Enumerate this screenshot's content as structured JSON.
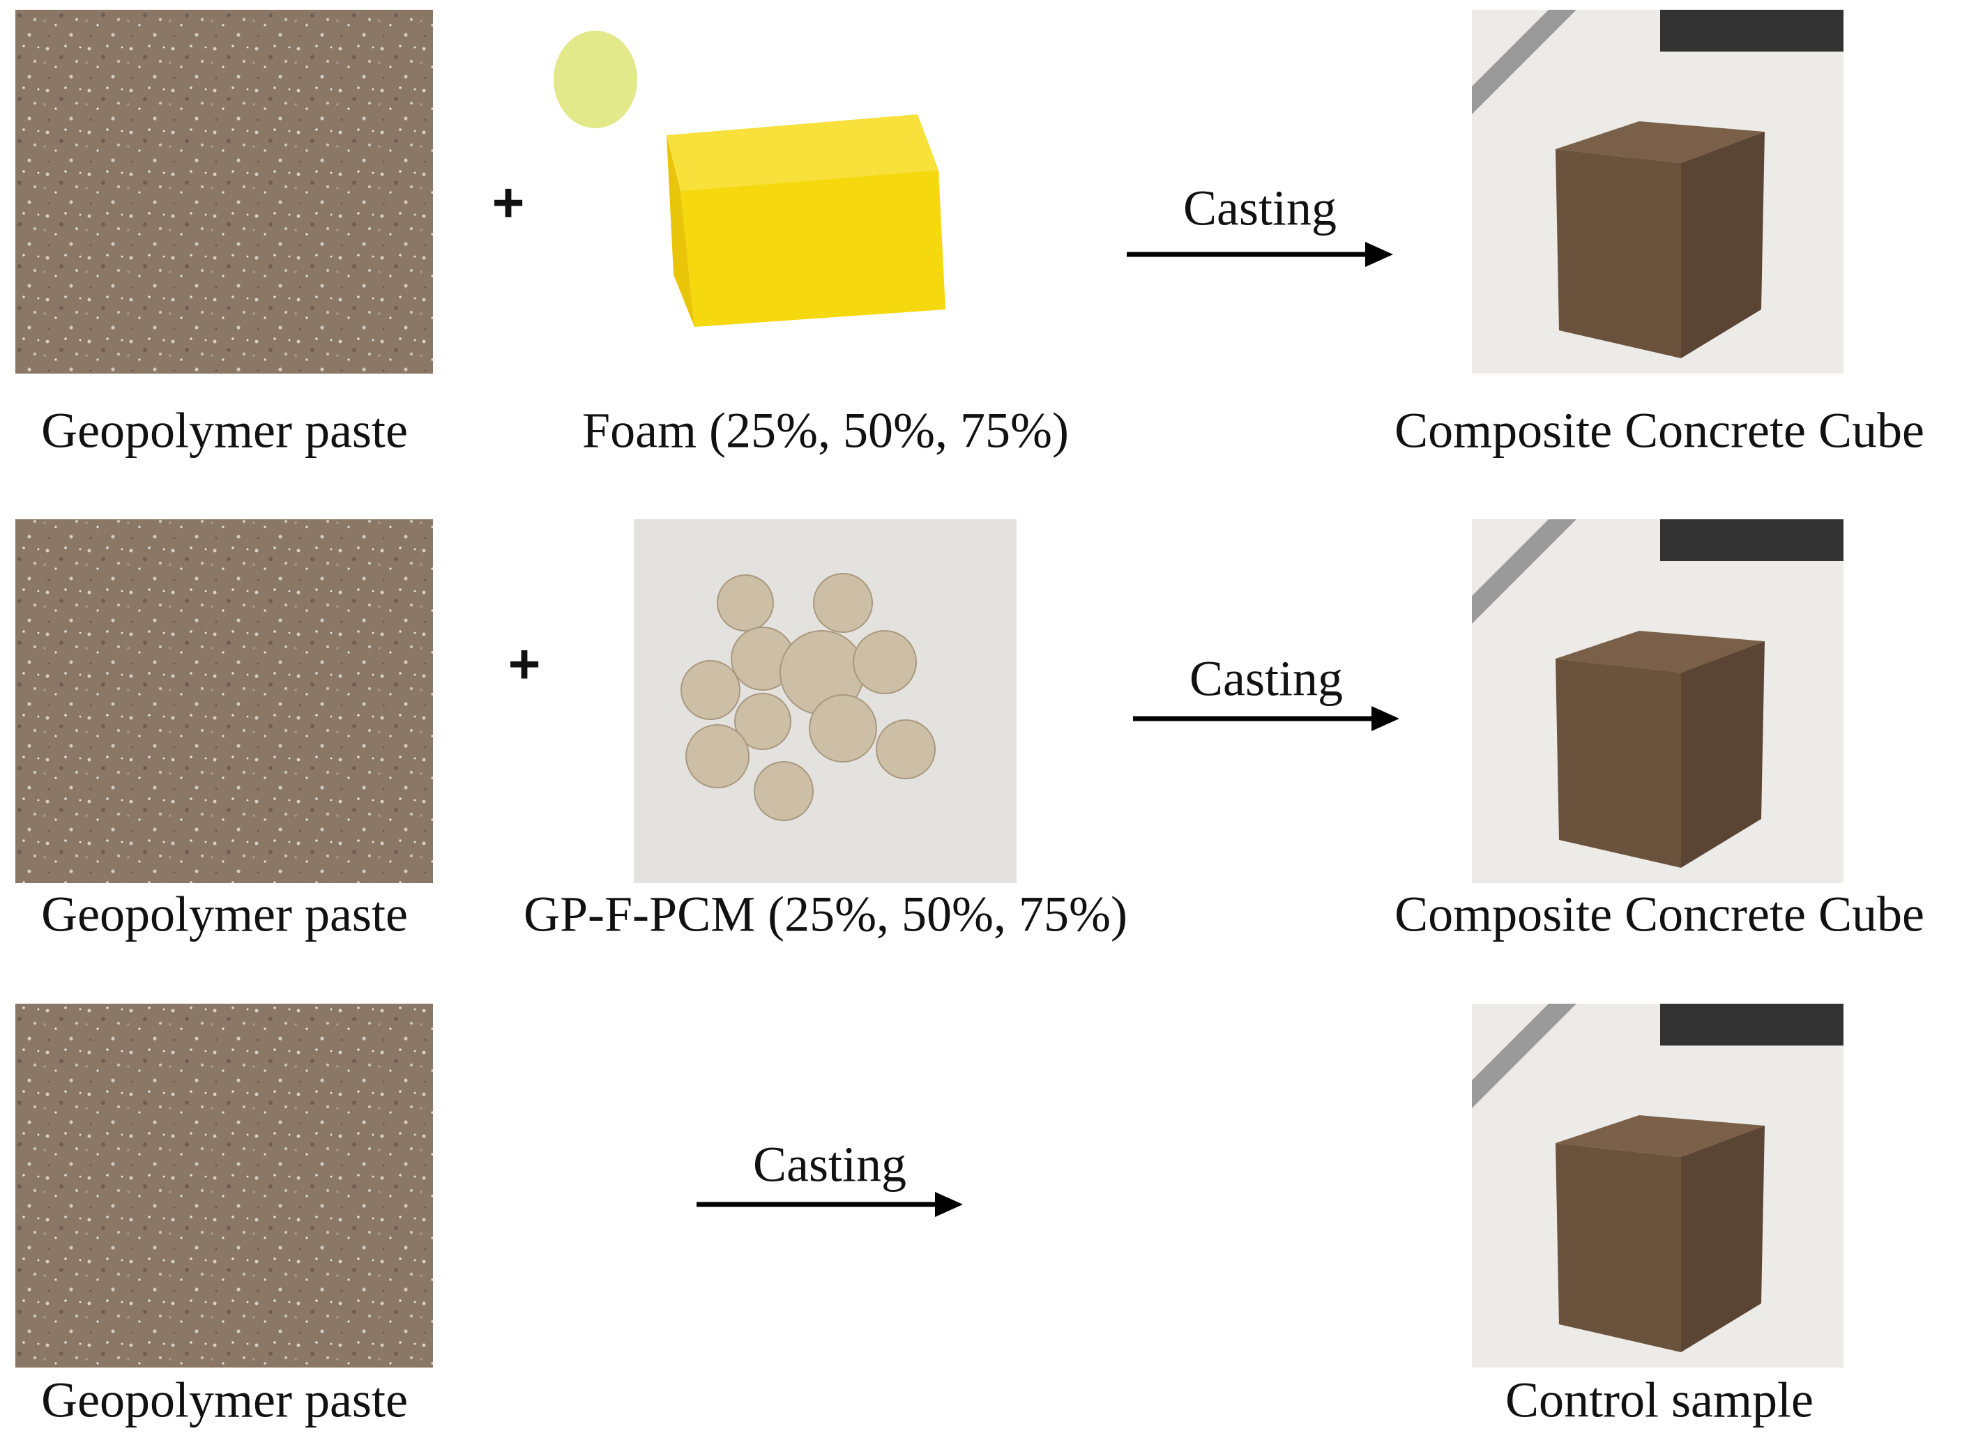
{
  "rows": [
    {
      "paste": "Geopolymer paste",
      "plus": "+",
      "additive": "Foam (25%, 50%, 75%)",
      "process": "Casting",
      "result": "Composite Concrete Cube"
    },
    {
      "paste": "Geopolymer paste",
      "plus": "+",
      "additive": "GP-F-PCM (25%, 50%, 75%)",
      "process": "Casting",
      "result": "Composite Concrete Cube"
    },
    {
      "paste": "Geopolymer paste",
      "process": "Casting",
      "result": "Control sample"
    }
  ]
}
